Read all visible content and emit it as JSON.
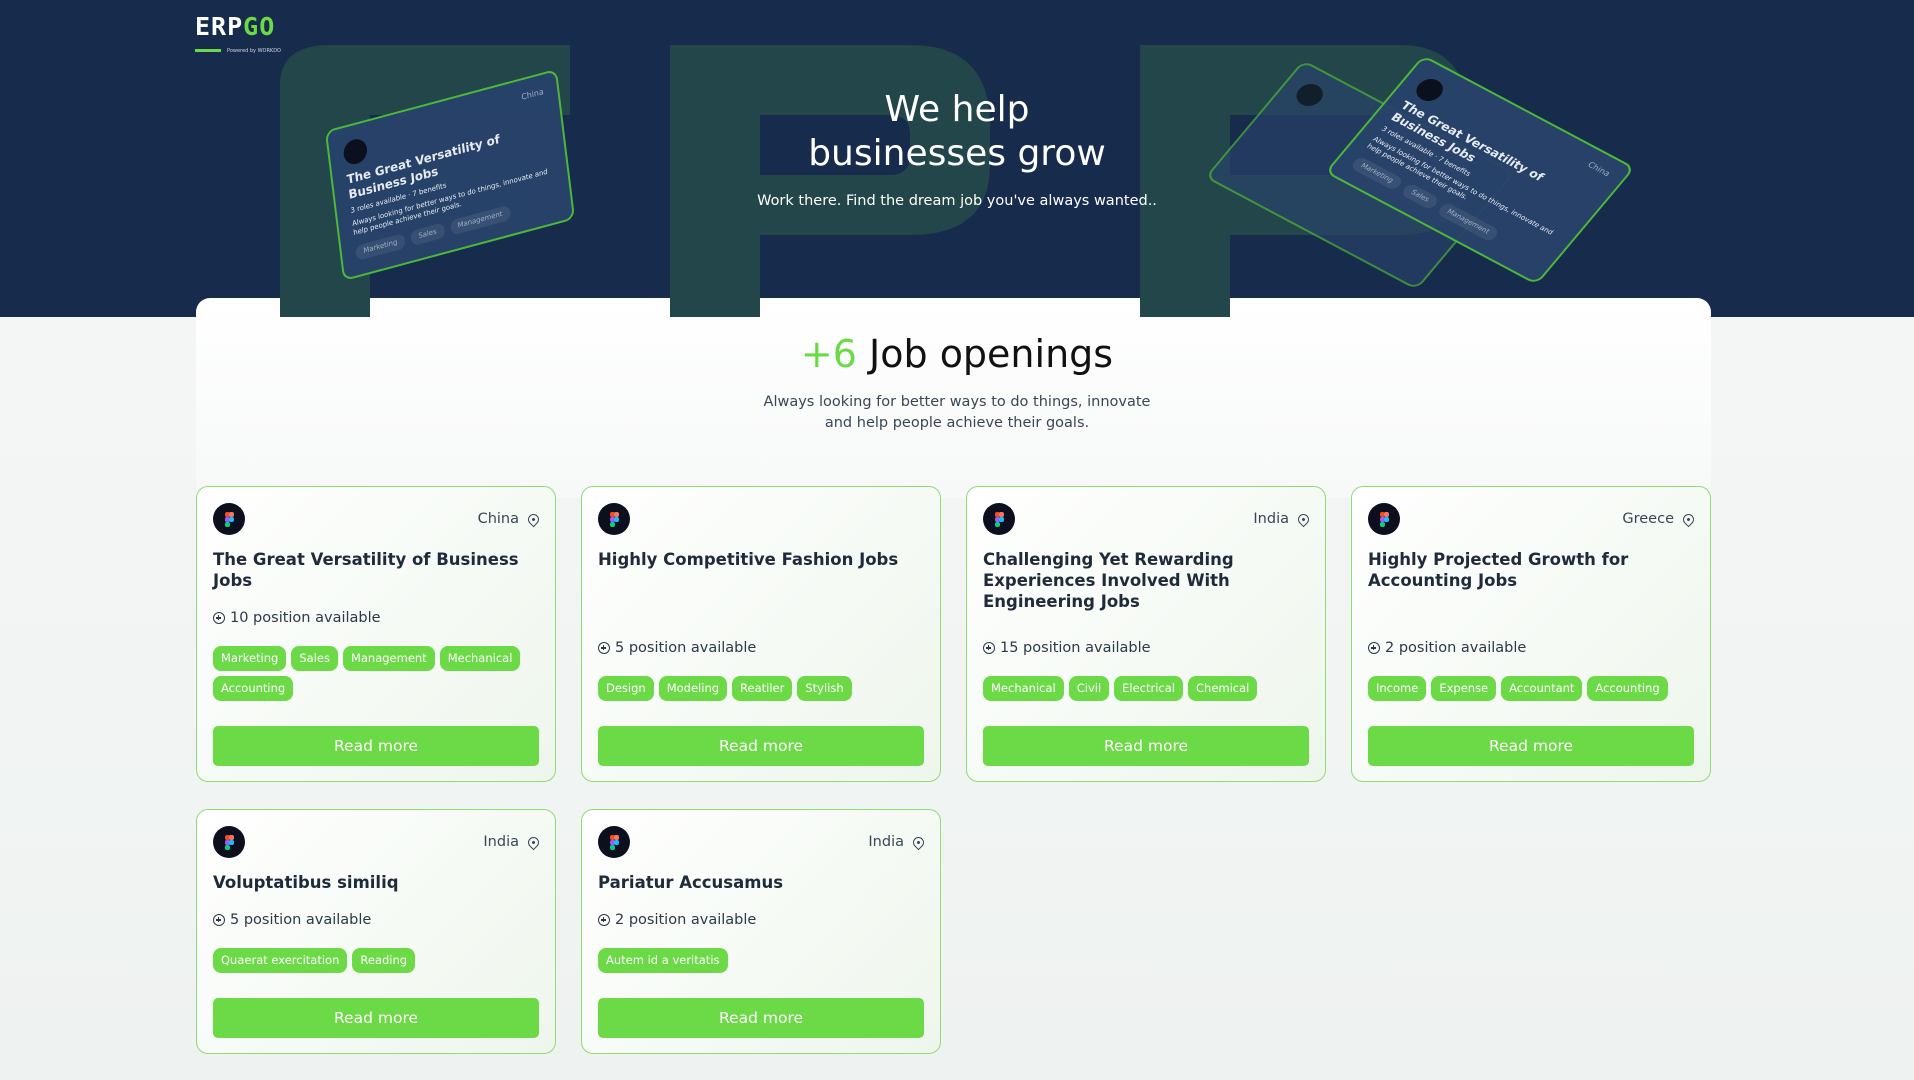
{
  "brand": {
    "logo_text": "ERP",
    "logo_accent": "GO",
    "powered": "Powered by WORKDO"
  },
  "hero": {
    "title_line1": "We help",
    "title_line2": "businesses grow",
    "subtitle": "Work there. Find the dream job you've always wanted..",
    "watermark": "ERP",
    "deco_card": {
      "location": "China",
      "title": "The Great Versatility of Business Jobs",
      "roles": "3 roles available",
      "benefits": "7 benefits",
      "desc": "Always looking for better ways to do things, innovate and help people achieve their goals.",
      "tags": [
        "Marketing",
        "Sales",
        "Management"
      ]
    }
  },
  "section": {
    "count": "+6",
    "heading": "Job openings",
    "intro_line1": "Always looking for better ways to do things, innovate",
    "intro_line2": "and help people achieve their goals."
  },
  "jobs": [
    {
      "location": "China",
      "title": "The Great Versatility of Business Jobs",
      "positions": "10 position available",
      "tags": [
        "Marketing",
        "Sales",
        "Management",
        "Mechanical",
        "Accounting"
      ],
      "button": "Read more"
    },
    {
      "location": "",
      "title": "Highly Competitive Fashion Jobs",
      "positions": "5 position available",
      "tags": [
        "Design",
        "Modeling",
        "Reatiler",
        "Stylish"
      ],
      "button": "Read more"
    },
    {
      "location": "India",
      "title": "Challenging Yet Rewarding Experiences Involved With Engineering Jobs",
      "positions": "15 position available",
      "tags": [
        "Mechanical",
        "Civil",
        "Electrical",
        "Chemical"
      ],
      "button": "Read more"
    },
    {
      "location": "Greece",
      "title": "Highly Projected Growth for Accounting Jobs",
      "positions": "2 position available",
      "tags": [
        "Income",
        "Expense",
        "Accountant",
        "Accounting"
      ],
      "button": "Read more"
    },
    {
      "location": "India",
      "title": "Voluptatibus similiq",
      "positions": "5 position available",
      "tags": [
        "Quaerat exercitation",
        "Reading"
      ],
      "button": "Read more"
    },
    {
      "location": "India",
      "title": "Pariatur Accusamus",
      "positions": "2 position available",
      "tags": [
        "Autem id a veritatis"
      ],
      "button": "Read more"
    }
  ],
  "colors": {
    "accent": "#6cd946",
    "hero_bg": "#172b4d"
  }
}
